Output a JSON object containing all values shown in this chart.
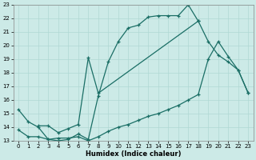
{
  "xlabel": "Humidex (Indice chaleur)",
  "bg_color": "#cceae7",
  "line_color": "#1a6e65",
  "xlim": [
    -0.5,
    23.5
  ],
  "ylim": [
    13,
    23
  ],
  "xticks": [
    0,
    1,
    2,
    3,
    4,
    5,
    6,
    7,
    8,
    9,
    10,
    11,
    12,
    13,
    14,
    15,
    16,
    17,
    18,
    19,
    20,
    21,
    22,
    23
  ],
  "yticks": [
    13,
    14,
    15,
    16,
    17,
    18,
    19,
    20,
    21,
    22,
    23
  ],
  "line1_x": [
    0,
    1,
    2,
    3,
    4,
    5,
    6,
    7,
    8,
    9,
    10,
    11,
    12,
    13,
    14,
    15,
    16,
    17,
    18
  ],
  "line1_y": [
    15.3,
    14.4,
    14.0,
    13.1,
    13.0,
    13.1,
    13.5,
    13.1,
    16.3,
    18.8,
    20.3,
    21.3,
    21.5,
    22.1,
    22.2,
    22.2,
    22.2,
    23.0,
    21.8
  ],
  "line2_x": [
    0,
    1,
    2,
    3,
    4,
    5,
    6,
    7,
    8,
    9,
    10,
    11,
    12,
    13,
    14,
    15,
    16,
    17,
    18,
    19,
    20,
    21,
    22,
    23
  ],
  "line2_y": [
    13.8,
    13.3,
    13.3,
    13.1,
    13.2,
    13.2,
    13.3,
    13.0,
    13.3,
    13.7,
    14.0,
    14.2,
    14.5,
    14.8,
    15.0,
    15.3,
    15.6,
    16.0,
    16.4,
    19.0,
    20.3,
    19.2,
    18.2,
    16.5
  ],
  "line3_x": [
    2,
    3,
    4,
    5,
    6,
    7,
    8,
    18,
    19,
    20,
    21,
    22,
    23
  ],
  "line3_y": [
    14.1,
    14.1,
    13.6,
    13.9,
    14.2,
    19.1,
    16.5,
    21.8,
    20.3,
    19.3,
    18.8,
    18.2,
    16.5
  ]
}
